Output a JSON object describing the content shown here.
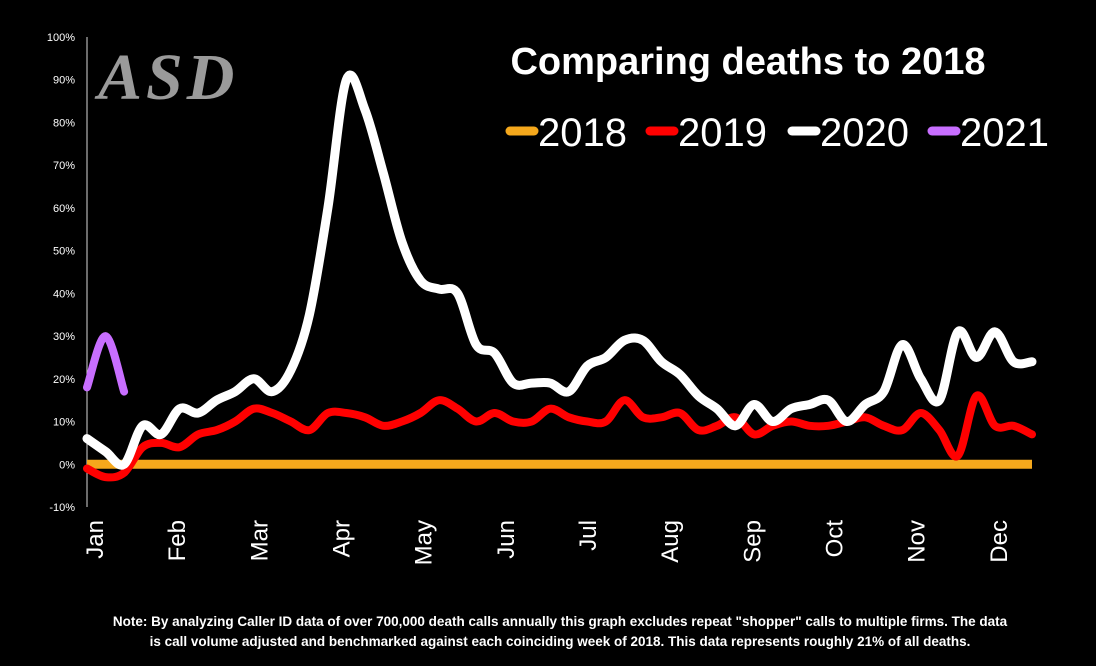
{
  "logo": {
    "text": "ASD"
  },
  "note": {
    "line1": "Note: By analyzing Caller ID data of over 700,000 death calls annually this graph excludes repeat \"shopper\" calls to multiple firms. The data",
    "line2": "is call volume adjusted and benchmarked against each coinciding week of 2018.  This data represents roughly 21% of all deaths."
  },
  "chart_data": {
    "type": "line",
    "title": "Comparing deaths to 2018",
    "ylim": [
      -10,
      100
    ],
    "yticks": [
      "-10%",
      "0%",
      "10%",
      "20%",
      "30%",
      "40%",
      "50%",
      "60%",
      "70%",
      "80%",
      "90%",
      "100%"
    ],
    "x_categories": [
      "Jan",
      "Feb",
      "Mar",
      "Apr",
      "May",
      "Jun",
      "Jul",
      "Aug",
      "Sep",
      "Oct",
      "Nov",
      "Dec"
    ],
    "legend_position": "top-right",
    "grid": false,
    "series": [
      {
        "name": "2018",
        "color": "#f5a81c",
        "x": [
          1,
          52
        ],
        "y": [
          0,
          0
        ]
      },
      {
        "name": "2019",
        "color": "#ff0000",
        "x": [
          1,
          2,
          3,
          4,
          5,
          6,
          7,
          8,
          9,
          10,
          11,
          12,
          13,
          14,
          15,
          16,
          17,
          18,
          19,
          20,
          21,
          22,
          23,
          24,
          25,
          26,
          27,
          28,
          29,
          30,
          31,
          32,
          33,
          34,
          35,
          36,
          37,
          38,
          39,
          40,
          41,
          42,
          43,
          44,
          45,
          46,
          47,
          48,
          49,
          50,
          51,
          52
        ],
        "y": [
          -1,
          -3,
          -2,
          4,
          5,
          4,
          7,
          8,
          10,
          13,
          12,
          10,
          8,
          12,
          12,
          11,
          9,
          10,
          12,
          15,
          13,
          10,
          12,
          10,
          10,
          13,
          11,
          10,
          10,
          15,
          11,
          11,
          12,
          8,
          9,
          11,
          7,
          9,
          10,
          9,
          9,
          10,
          11,
          9,
          8,
          12,
          8,
          2,
          16,
          9,
          9,
          7
        ]
      },
      {
        "name": "2020",
        "color": "#ffffff",
        "x": [
          1,
          2,
          3,
          4,
          5,
          6,
          7,
          8,
          9,
          10,
          11,
          12,
          13,
          14,
          15,
          16,
          17,
          18,
          19,
          20,
          21,
          22,
          23,
          24,
          25,
          26,
          27,
          28,
          29,
          30,
          31,
          32,
          33,
          34,
          35,
          36,
          37,
          38,
          39,
          40,
          41,
          42,
          43,
          44,
          45,
          46,
          47,
          48,
          49,
          50,
          51,
          52
        ],
        "y": [
          6,
          3,
          0,
          9,
          7,
          13,
          12,
          15,
          17,
          20,
          17,
          22,
          35,
          60,
          90,
          83,
          68,
          52,
          43,
          41,
          40,
          28,
          26,
          19,
          19,
          19,
          17,
          23,
          25,
          29,
          29,
          24,
          21,
          16,
          13,
          9,
          14,
          10,
          13,
          14,
          15,
          10,
          14,
          17,
          28,
          20,
          15,
          31,
          25,
          31,
          24,
          24
        ]
      },
      {
        "name": "2021",
        "color": "#c86eff",
        "x": [
          1,
          2,
          3
        ],
        "y": [
          18,
          30,
          17
        ]
      }
    ]
  }
}
